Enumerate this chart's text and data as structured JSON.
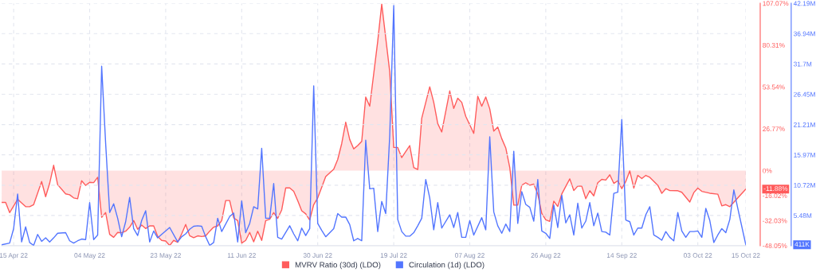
{
  "chart_data": {
    "type": "line",
    "xlim": [
      "2022-04-12",
      "2022-10-15"
    ],
    "xticks": [
      {
        "value": "2022-04-15",
        "label": "15 Apr 22"
      },
      {
        "value": "2022-05-04",
        "label": "04 May 22"
      },
      {
        "value": "2022-05-23",
        "label": "23 May 22"
      },
      {
        "value": "2022-06-11",
        "label": "11 Jun 22"
      },
      {
        "value": "2022-06-30",
        "label": "30 Jun 22"
      },
      {
        "value": "2022-07-19",
        "label": "19 Jul 22"
      },
      {
        "value": "2022-08-07",
        "label": "07 Aug 22"
      },
      {
        "value": "2022-08-26",
        "label": "26 Aug 22"
      },
      {
        "value": "2022-09-14",
        "label": "14 Sep 22"
      },
      {
        "value": "2022-10-03",
        "label": "03 Oct 22"
      },
      {
        "value": "2022-10-15",
        "label": "15 Oct 22"
      }
    ],
    "ylim": [
      -48.05,
      107.07
    ],
    "yticks": [
      {
        "value": -48.05,
        "label": "-48.05%"
      },
      {
        "value": -32.03,
        "label": "-32.03%"
      },
      {
        "value": -16.02,
        "label": "-16.02%"
      },
      {
        "value": 0,
        "label": "0%"
      },
      {
        "value": 26.77,
        "label": "26.77%"
      },
      {
        "value": 53.54,
        "label": "53.54%"
      },
      {
        "value": 80.31,
        "label": "80.31%"
      },
      {
        "value": 107.07,
        "label": "107.07%"
      }
    ],
    "y2lim": [
      0.26,
      42.19
    ],
    "y2ticks": [
      {
        "value": 5.48,
        "label": "5.48M"
      },
      {
        "value": 10.72,
        "label": "10.72M"
      },
      {
        "value": 15.97,
        "label": "15.97M"
      },
      {
        "value": 21.21,
        "label": "21.21M"
      },
      {
        "value": 26.45,
        "label": "26.45M"
      },
      {
        "value": 31.7,
        "label": "31.7M"
      },
      {
        "value": 36.94,
        "label": "36.94M"
      },
      {
        "value": 42.19,
        "label": "42.19M"
      }
    ],
    "grid": true,
    "legend": "bottom",
    "annotations": [
      "-11.88%",
      "411K"
    ],
    "series": [
      {
        "name": "MVRV Ratio (30d) (LDO)",
        "type": "area",
        "color": "#ff5b5b",
        "x": [
          "2022-04-12",
          "2022-04-13",
          "2022-04-14",
          "2022-04-16",
          "2022-04-18",
          "2022-04-19",
          "2022-04-20",
          "2022-04-22",
          "2022-04-23",
          "2022-04-24",
          "2022-04-25",
          "2022-04-26",
          "2022-04-28",
          "2022-04-29",
          "2022-04-30",
          "2022-05-01",
          "2022-05-02",
          "2022-05-03",
          "2022-05-04",
          "2022-05-05",
          "2022-05-06",
          "2022-05-07",
          "2022-05-08",
          "2022-05-09",
          "2022-05-10",
          "2022-05-11",
          "2022-05-12",
          "2022-05-13",
          "2022-05-14",
          "2022-05-15",
          "2022-05-16",
          "2022-05-17",
          "2022-05-18",
          "2022-05-19",
          "2022-05-20",
          "2022-05-21",
          "2022-05-22",
          "2022-05-23",
          "2022-05-24",
          "2022-05-25",
          "2022-05-26",
          "2022-05-27",
          "2022-05-28",
          "2022-05-29",
          "2022-05-30",
          "2022-05-31",
          "2022-06-01",
          "2022-06-02",
          "2022-06-03",
          "2022-06-04",
          "2022-06-05",
          "2022-06-06",
          "2022-06-07",
          "2022-06-08",
          "2022-06-09",
          "2022-06-10",
          "2022-06-11",
          "2022-06-12",
          "2022-06-13",
          "2022-06-14",
          "2022-06-15",
          "2022-06-16",
          "2022-06-17",
          "2022-06-18",
          "2022-06-19",
          "2022-06-20",
          "2022-06-21",
          "2022-06-22",
          "2022-06-23",
          "2022-06-24",
          "2022-06-25",
          "2022-06-26",
          "2022-06-27",
          "2022-06-28",
          "2022-06-29",
          "2022-06-30",
          "2022-07-01",
          "2022-07-02",
          "2022-07-04",
          "2022-07-05",
          "2022-07-06",
          "2022-07-07",
          "2022-07-08",
          "2022-07-09",
          "2022-07-10",
          "2022-07-11",
          "2022-07-12",
          "2022-07-13",
          "2022-07-15",
          "2022-07-16",
          "2022-07-18",
          "2022-07-19",
          "2022-07-20",
          "2022-07-21",
          "2022-07-23",
          "2022-07-24",
          "2022-07-25",
          "2022-07-26",
          "2022-07-28",
          "2022-07-29",
          "2022-07-30",
          "2022-07-31",
          "2022-08-02",
          "2022-08-03",
          "2022-08-04",
          "2022-08-05",
          "2022-08-06",
          "2022-08-07",
          "2022-08-08",
          "2022-08-09",
          "2022-08-10",
          "2022-08-11",
          "2022-08-12",
          "2022-08-13",
          "2022-08-14",
          "2022-08-15",
          "2022-08-16",
          "2022-08-17",
          "2022-08-18",
          "2022-08-19",
          "2022-08-20",
          "2022-08-21",
          "2022-08-22",
          "2022-08-23",
          "2022-08-24",
          "2022-08-25",
          "2022-08-26",
          "2022-08-27",
          "2022-08-28",
          "2022-08-29",
          "2022-08-30",
          "2022-09-01",
          "2022-09-02",
          "2022-09-03",
          "2022-09-04",
          "2022-09-05",
          "2022-09-06",
          "2022-09-07",
          "2022-09-08",
          "2022-09-09",
          "2022-09-10",
          "2022-09-11",
          "2022-09-12",
          "2022-09-13",
          "2022-09-14",
          "2022-09-15",
          "2022-09-16",
          "2022-09-17",
          "2022-09-18",
          "2022-09-19",
          "2022-09-20",
          "2022-09-21",
          "2022-09-23",
          "2022-09-24",
          "2022-09-25",
          "2022-09-26",
          "2022-09-28",
          "2022-09-29",
          "2022-10-01",
          "2022-10-02",
          "2022-10-03",
          "2022-10-04",
          "2022-10-06",
          "2022-10-08",
          "2022-10-09",
          "2022-10-10",
          "2022-10-11",
          "2022-10-13",
          "2022-10-15"
        ],
        "values": [
          -20.4,
          -20.4,
          -26.9,
          -18.4,
          -23.1,
          -23.1,
          -21.8,
          -7.0,
          -16.7,
          -8.2,
          3.4,
          -9.0,
          -14.9,
          -15.5,
          -17.5,
          -18.0,
          -6.5,
          -9.5,
          -7.5,
          -7.7,
          -4.3,
          -29.9,
          -26.9,
          -40.8,
          -42.7,
          -39.6,
          -39.8,
          -38.8,
          -36.2,
          -32.0,
          -37.6,
          -34.9,
          -37.1,
          -35.4,
          -35.4,
          -42.2,
          -44.7,
          -45.1,
          -48.0,
          -44.7,
          -45.9,
          -40.5,
          -34.5,
          -41.7,
          -43.0,
          -41.8,
          -42.2,
          -41.8,
          -38.8,
          -36.2,
          -35.4,
          -32.0,
          -19.2,
          -19.2,
          -30.3,
          -32.0,
          -46.4,
          -44.7,
          -39.6,
          -45.6,
          -38.8,
          -44.7,
          -32.0,
          -31.1,
          -26.9,
          -30.6,
          -25.2,
          -11.1,
          -11.1,
          -13.3,
          -19.2,
          -25.7,
          -27.7,
          -31.6,
          -21.8,
          -17.5,
          -10.7,
          -3.9,
          0.9,
          7.1,
          17.3,
          31.0,
          19.9,
          13.9,
          16.0,
          18.7,
          47.1,
          41.2,
          82.8,
          106.6,
          63.3,
          14.8,
          14.8,
          8.3,
          16.0,
          2.0,
          0.7,
          33.5,
          53.6,
          43.7,
          30.1,
          24.7,
          51.0,
          39.8,
          46.3,
          43.7,
          34.7,
          29.3,
          23.8,
          47.6,
          41.2,
          47.1,
          39.5,
          25.3,
          27.9,
          20.4,
          14.5,
          2.0,
          -22.1,
          -22.1,
          -9.4,
          -7.8,
          -9.4,
          -8.7,
          -15.0,
          -27.4,
          -31.5,
          -32.5,
          -19.6,
          -23.0,
          -15.0,
          -5.3,
          -12.8,
          -9.9,
          -10.0,
          -18.0,
          -12.9,
          -16.2,
          -7.8,
          -5.6,
          -6.1,
          -2.7,
          -8.2,
          -6.5,
          -11.6,
          -7.0,
          -0.2,
          -11.2,
          -3.1,
          -5.1,
          -3.1,
          -4.3,
          -9.4,
          -14.6,
          -11.6,
          -12.8,
          -12.9,
          -13.9,
          -20.1,
          -14.1,
          -11.2,
          -13.3,
          -14.5,
          -15.1,
          -22.6,
          -21.8,
          -23.1,
          -17.5,
          -11.88
        ]
      },
      {
        "name": "Circulation (1d) (LDO)",
        "axis": "y2",
        "color": "#5275ff",
        "x": [
          "2022-04-12",
          "2022-04-14",
          "2022-04-15",
          "2022-04-16",
          "2022-04-17",
          "2022-04-18",
          "2022-04-19",
          "2022-04-20",
          "2022-04-21",
          "2022-04-22",
          "2022-04-23",
          "2022-04-24",
          "2022-04-25",
          "2022-04-26",
          "2022-04-28",
          "2022-04-29",
          "2022-04-30",
          "2022-05-01",
          "2022-05-02",
          "2022-05-03",
          "2022-05-04",
          "2022-05-05",
          "2022-05-06",
          "2022-05-07",
          "2022-05-08",
          "2022-05-09",
          "2022-05-10",
          "2022-05-11",
          "2022-05-12",
          "2022-05-13",
          "2022-05-14",
          "2022-05-15",
          "2022-05-16",
          "2022-05-17",
          "2022-05-18",
          "2022-05-19",
          "2022-05-20",
          "2022-05-21",
          "2022-05-24",
          "2022-05-26",
          "2022-05-27",
          "2022-05-28",
          "2022-05-29",
          "2022-05-30",
          "2022-05-31",
          "2022-06-01",
          "2022-06-02",
          "2022-06-03",
          "2022-06-04",
          "2022-06-05",
          "2022-06-06",
          "2022-06-08",
          "2022-06-09",
          "2022-06-10",
          "2022-06-11",
          "2022-06-12",
          "2022-06-13",
          "2022-06-14",
          "2022-06-15",
          "2022-06-16",
          "2022-06-17",
          "2022-06-18",
          "2022-06-19",
          "2022-06-20",
          "2022-06-21",
          "2022-06-23",
          "2022-06-24",
          "2022-06-25",
          "2022-06-26",
          "2022-06-27",
          "2022-06-28",
          "2022-06-29",
          "2022-06-30",
          "2022-07-01",
          "2022-07-02",
          "2022-07-04",
          "2022-07-05",
          "2022-07-06",
          "2022-07-07",
          "2022-07-08",
          "2022-07-09",
          "2022-07-10",
          "2022-07-11",
          "2022-07-12",
          "2022-07-13",
          "2022-07-14",
          "2022-07-15",
          "2022-07-16",
          "2022-07-17",
          "2022-07-18",
          "2022-07-19",
          "2022-07-20",
          "2022-07-21",
          "2022-07-22",
          "2022-07-23",
          "2022-07-24",
          "2022-07-25",
          "2022-07-26",
          "2022-07-27",
          "2022-07-28",
          "2022-07-29",
          "2022-07-30",
          "2022-07-31",
          "2022-08-02",
          "2022-08-03",
          "2022-08-04",
          "2022-08-05",
          "2022-08-06",
          "2022-08-07",
          "2022-08-08",
          "2022-08-10",
          "2022-08-11",
          "2022-08-12",
          "2022-08-13",
          "2022-08-14",
          "2022-08-15",
          "2022-08-16",
          "2022-08-17",
          "2022-08-18",
          "2022-08-19",
          "2022-08-20",
          "2022-08-21",
          "2022-08-22",
          "2022-08-23",
          "2022-08-24",
          "2022-08-25",
          "2022-08-26",
          "2022-08-27",
          "2022-08-28",
          "2022-08-29",
          "2022-08-30",
          "2022-08-31",
          "2022-09-01",
          "2022-09-02",
          "2022-09-03",
          "2022-09-04",
          "2022-09-05",
          "2022-09-06",
          "2022-09-07",
          "2022-09-08",
          "2022-09-09",
          "2022-09-10",
          "2022-09-11",
          "2022-09-12",
          "2022-09-13",
          "2022-09-14",
          "2022-09-15",
          "2022-09-16",
          "2022-09-17",
          "2022-09-18",
          "2022-09-19",
          "2022-09-20",
          "2022-09-21",
          "2022-09-22",
          "2022-09-23",
          "2022-09-24",
          "2022-09-25",
          "2022-09-26",
          "2022-09-27",
          "2022-09-28",
          "2022-09-29",
          "2022-09-30",
          "2022-10-01",
          "2022-10-02",
          "2022-10-03",
          "2022-10-04",
          "2022-10-05",
          "2022-10-06",
          "2022-10-07",
          "2022-10-08",
          "2022-10-09",
          "2022-10-10",
          "2022-10-11",
          "2022-10-12",
          "2022-10-13",
          "2022-10-15"
        ],
        "values": [
          0.4,
          0.7,
          3.2,
          9.2,
          0.9,
          3.5,
          0.8,
          0.3,
          2.2,
          1.0,
          1.6,
          0.9,
          1.6,
          2.4,
          2.5,
          1.1,
          0.7,
          1.1,
          1.4,
          1.3,
          7.7,
          1.3,
          2.1,
          31.3,
          17.9,
          6.0,
          7.5,
          5.0,
          1.8,
          4.4,
          8.6,
          3.2,
          2.0,
          4.6,
          6.3,
          0.9,
          2.8,
          1.6,
          3.4,
          0.9,
          1.8,
          2.3,
          3.1,
          3.6,
          3.7,
          3.6,
          1.8,
          0.3,
          0.8,
          5.0,
          2.7,
          5.3,
          5.9,
          0.9,
          8.0,
          2.5,
          4.1,
          7.0,
          6.6,
          17.1,
          5.0,
          5.0,
          11.0,
          1.7,
          1.4,
          3.7,
          2.3,
          1.1,
          3.3,
          2.0,
          3.2,
          27.9,
          4.1,
          2.9,
          1.8,
          3.2,
          5.8,
          5.2,
          5.2,
          3.9,
          1.1,
          1.5,
          1.1,
          18.5,
          10.1,
          10.2,
          2.7,
          7.9,
          5.8,
          19.3,
          41.8,
          4.8,
          2.7,
          1.9,
          1.9,
          2.5,
          3.7,
          5.0,
          11.7,
          8.5,
          3.0,
          7.7,
          3.3,
          5.6,
          3.4,
          6.0,
          1.7,
          1.7,
          4.6,
          2.1,
          5.1,
          3.0,
          19.1,
          6.1,
          3.7,
          2.4,
          4.0,
          2.7,
          16.6,
          4.1,
          9.6,
          7.4,
          6.9,
          4.5,
          11.7,
          2.8,
          2.4,
          1.5,
          7.3,
          3.4,
          9.0,
          4.2,
          5.6,
          2.1,
          7.6,
          3.3,
          4.5,
          7.7,
          3.7,
          5.9,
          2.7,
          2.6,
          2.1,
          9.3,
          9.5,
          22.1,
          4.7,
          4.4,
          2.1,
          3.3,
          3.3,
          5.6,
          7.0,
          2.1,
          1.7,
          1.2,
          2.7,
          1.7,
          1.1,
          6.0,
          2.8,
          1.7,
          2.7,
          2.7,
          2.8,
          1.7,
          6.7,
          4.6,
          0.8,
          2.1,
          3.2,
          2.5,
          4.8,
          9.9,
          6.7,
          0.411
        ]
      }
    ]
  }
}
